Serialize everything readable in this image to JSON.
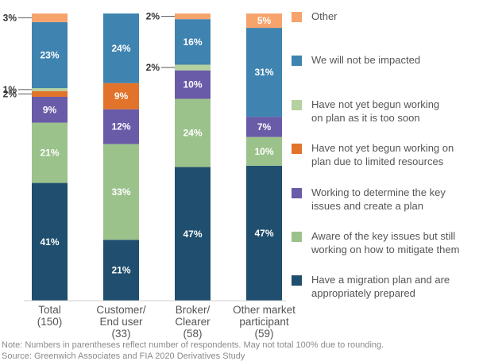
{
  "chart_data": {
    "type": "bar",
    "stacked": true,
    "categories": [
      "Total\n(150)",
      "Customer/\nEnd user\n(33)",
      "Broker/\nClearer\n(58)",
      "Other market\nparticipant\n(59)"
    ],
    "ylim": [
      0,
      100
    ],
    "grid": false,
    "legend_position": "right",
    "series": [
      {
        "name": "Have a migration plan and are appropriately prepared",
        "color": "#1f4e6e",
        "values": [
          41,
          21,
          47,
          47
        ]
      },
      {
        "name": "Aware of the key issues but still working on how to mitigate them",
        "color": "#9cc28c",
        "values": [
          21,
          33,
          24,
          10
        ]
      },
      {
        "name": "Working to determine the key issues and create a plan",
        "color": "#6a5ba8",
        "values": [
          9,
          12,
          10,
          7
        ]
      },
      {
        "name": "Have not yet begun working on plan due to limited resources",
        "color": "#e2732a",
        "values": [
          2,
          9,
          0,
          0
        ]
      },
      {
        "name": "Have not yet begun working on plan as it is too soon",
        "color": "#b4d19f",
        "values": [
          1,
          0,
          2,
          0
        ]
      },
      {
        "name": "We will not be impacted",
        "color": "#3f83b0",
        "values": [
          23,
          24,
          16,
          31
        ]
      },
      {
        "name": "Other",
        "color": "#f6a36c",
        "values": [
          3,
          0,
          2,
          5
        ]
      }
    ],
    "value_labels": [
      [
        "41%",
        "21%",
        "9%",
        "2%",
        "1%",
        "23%",
        "3%"
      ],
      [
        "21%",
        "33%",
        "12%",
        "9%",
        "",
        "24%",
        ""
      ],
      [
        "47%",
        "24%",
        "10%",
        "",
        "2%",
        "16%",
        "2%"
      ],
      [
        "47%",
        "10%",
        "7%",
        "",
        "",
        "31%",
        "5%"
      ]
    ],
    "legend_order": [
      "Other",
      "We will not be impacted",
      "Have not yet begun working on plan as it is too soon",
      "Have not yet begun working on plan due to limited resources",
      "Working to determine the key issues and create a plan",
      "Aware of the key issues but still working on how to mitigate them",
      "Have a migration plan and are appropriately prepared"
    ],
    "legend_labels": [
      "Other",
      "We will not be impacted",
      "Have not yet begun working\non plan as it is too soon",
      "Have not yet begun working on\nplan due to limited resources",
      "Working to determine the key\nissues and create a plan",
      "Aware of the key issues but still\nworking on how to mitigate them",
      "Have a migration plan and are\nappropriately prepared"
    ]
  },
  "footnote": "Note: Numbers in parentheses reflect number of respondents. May not total 100% due to rounding.",
  "source": "Source: Greenwich Associates and FIA 2020 Derivatives Study"
}
